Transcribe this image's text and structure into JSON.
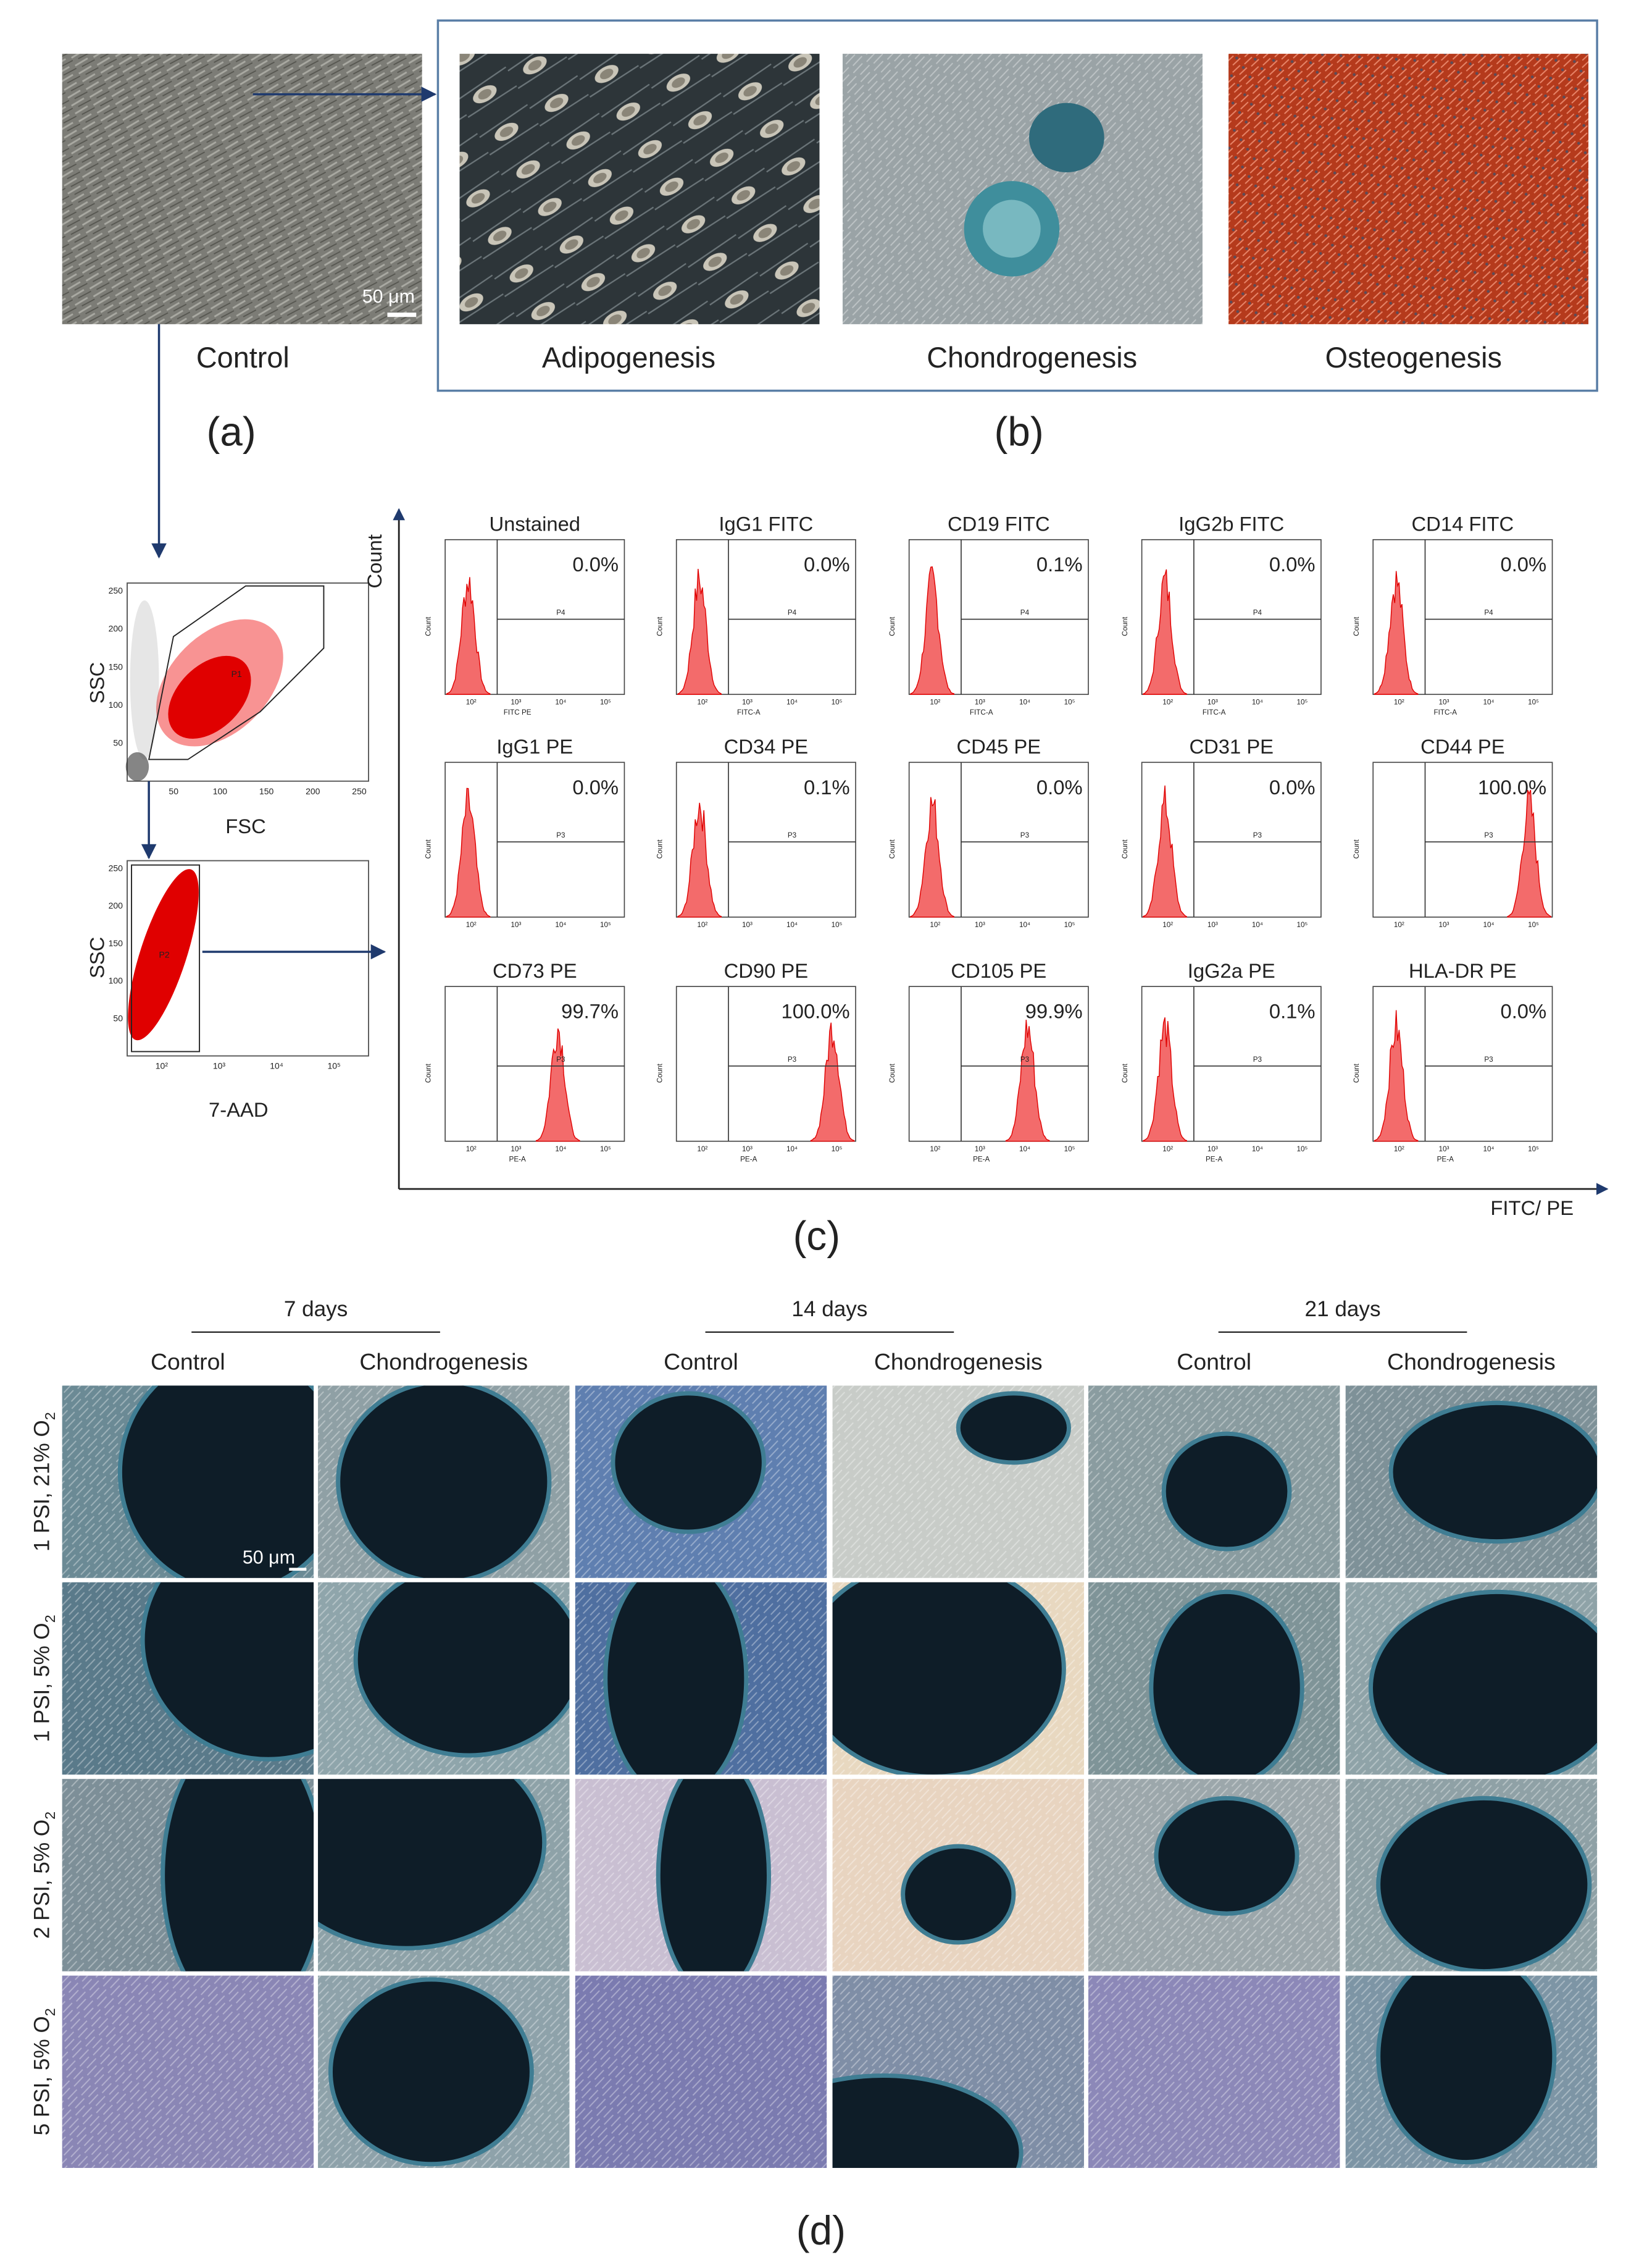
{
  "panel_a": {
    "label": "(a)",
    "caption": "Control",
    "scale_bar": "50 μm"
  },
  "panel_b": {
    "label": "(b)",
    "captions": [
      "Adipogenesis",
      "Chondrogenesis",
      "Osteogenesis"
    ]
  },
  "panel_c": {
    "label": "(c)",
    "y_axis": "Count",
    "x_axis": "FITC/ PE",
    "gating": [
      {
        "y_label": "SSC",
        "x_label": "FSC",
        "gate": "P1",
        "y_ticks": [
          "50",
          "100",
          "150",
          "200",
          "250"
        ],
        "x_ticks": [
          "50",
          "100",
          "150",
          "200",
          "250"
        ]
      },
      {
        "y_label": "SSC",
        "x_label": "7-AAD",
        "gate": "P2",
        "y_ticks": [
          "50",
          "100",
          "150",
          "200",
          "250"
        ],
        "x_ticks": [
          "10²",
          "10³",
          "10⁴",
          "10⁵"
        ]
      }
    ],
    "histogram_y_label": "Count",
    "histogram_x_ticks": [
      "10²",
      "10³",
      "10⁴",
      "10⁵"
    ],
    "histograms": [
      {
        "title": "Unstained",
        "percent": "0.0%",
        "gate": "P4",
        "x_label": "FITC PE"
      },
      {
        "title": "IgG1  FITC",
        "percent": "0.0%",
        "gate": "P4",
        "x_label": "FITC-A"
      },
      {
        "title": "CD19  FITC",
        "percent": "0.1%",
        "gate": "P4",
        "x_label": "FITC-A"
      },
      {
        "title": "IgG2b  FITC",
        "percent": "0.0%",
        "gate": "P4",
        "x_label": "FITC-A"
      },
      {
        "title": "CD14  FITC",
        "percent": "0.0%",
        "gate": "P4",
        "x_label": "FITC-A"
      },
      {
        "title": "IgG1  PE",
        "percent": "0.0%",
        "gate": "P3"
      },
      {
        "title": "CD34  PE",
        "percent": "0.1%",
        "gate": "P3"
      },
      {
        "title": "CD45  PE",
        "percent": "0.0%",
        "gate": "P3"
      },
      {
        "title": "CD31  PE",
        "percent": "0.0%",
        "gate": "P3"
      },
      {
        "title": "CD44  PE",
        "percent": "100.0%",
        "gate": "P3"
      },
      {
        "title": "CD73  PE",
        "percent": "99.7%",
        "gate": "P3",
        "x_label": "PE-A"
      },
      {
        "title": "CD90  PE",
        "percent": "100.0%",
        "gate": "P3",
        "x_label": "PE-A"
      },
      {
        "title": "CD105  PE",
        "percent": "99.9%",
        "gate": "P3",
        "x_label": "PE-A"
      },
      {
        "title": "IgG2a  PE",
        "percent": "0.1%",
        "gate": "P3",
        "x_label": "PE-A"
      },
      {
        "title": "HLA-DR  PE",
        "percent": "0.0%",
        "gate": "P3",
        "x_label": "PE-A"
      }
    ]
  },
  "panel_d": {
    "label": "(d)",
    "scale_bar": "50 μm",
    "days": [
      {
        "label": "7 days",
        "columns": [
          "Control",
          "Chondrogenesis"
        ]
      },
      {
        "label": "14 days",
        "columns": [
          "Control",
          "Chondrogenesis"
        ]
      },
      {
        "label": "21 days",
        "columns": [
          "Control",
          "Chondrogenesis"
        ]
      }
    ],
    "rows": [
      {
        "label": "1 PSI, 21% O",
        "subscript": "2"
      },
      {
        "label": "1 PSI, 5% O",
        "subscript": "2"
      },
      {
        "label": "2 PSI, 5% O",
        "subscript": "2"
      },
      {
        "label": "5 PSI, 5% O",
        "subscript": "2"
      }
    ]
  }
}
